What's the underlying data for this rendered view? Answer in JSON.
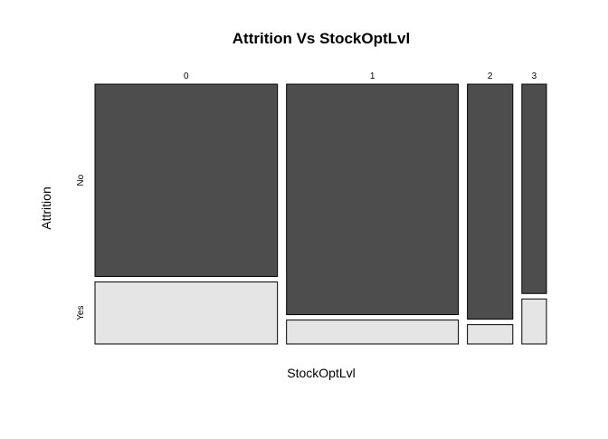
{
  "chart_data": {
    "type": "mosaic",
    "title": "Attrition Vs StockOptLvl",
    "xlabel": "StockOptLvl",
    "ylabel": "Attrition",
    "categories": [
      "0",
      "1",
      "2",
      "3"
    ],
    "column_proportions": [
      0.43,
      0.405,
      0.107,
      0.058
    ],
    "levels": [
      "No",
      "Yes"
    ],
    "conditional_proportions": {
      "No": [
        0.756,
        0.906,
        0.924,
        0.823
      ],
      "Yes": [
        0.244,
        0.094,
        0.076,
        0.177
      ]
    },
    "colors": {
      "No": "#4d4d4d",
      "Yes": "#e5e5e5"
    },
    "grid": false,
    "legend": "none"
  }
}
